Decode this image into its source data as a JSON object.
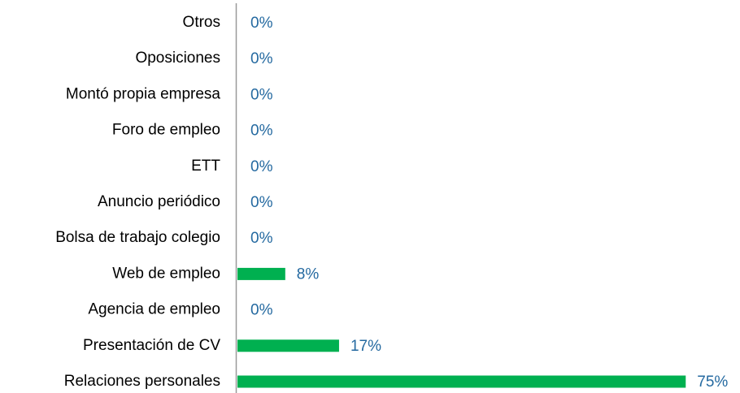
{
  "chart_data": {
    "type": "bar",
    "orientation": "horizontal",
    "color": "#00b050",
    "categories": [
      "Otros",
      "Oposiciones",
      "Montó propia empresa",
      "Foro de empleo",
      "ETT",
      "Anuncio periódico",
      "Bolsa de trabajo colegio",
      "Web de empleo",
      "Agencia de empleo",
      "Presentación de CV",
      "Relaciones personales"
    ],
    "values": [
      0,
      0,
      0,
      0,
      0,
      0,
      0,
      8,
      0,
      17,
      75
    ],
    "value_labels": [
      "0%",
      "0%",
      "0%",
      "0%",
      "0%",
      "0%",
      "0%",
      "8%",
      "0%",
      "17%",
      "75%"
    ]
  }
}
